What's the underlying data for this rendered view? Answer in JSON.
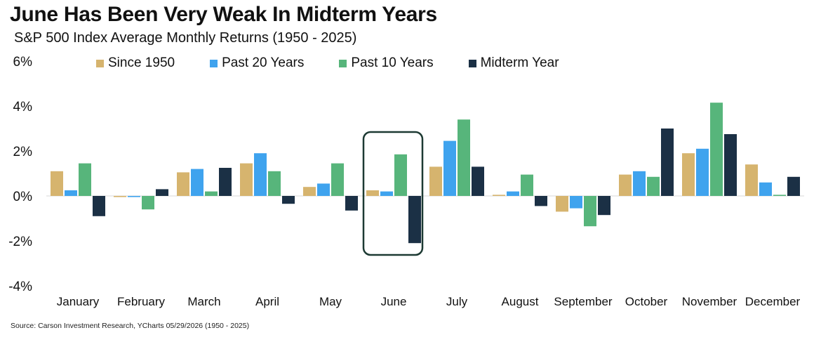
{
  "title": "June Has Been Very Weak In Midterm Years",
  "subtitle": "S&P 500 Index Average Monthly Returns (1950 - 2025)",
  "source": "Source: Carson Investment Research, YCharts 05/29/2026 (1950 - 2025)",
  "colors": {
    "since_1950": "#d6b46e",
    "past_20": "#3fa3ee",
    "past_10": "#57b57b",
    "midterm": "#1b3045",
    "highlight_box": "#1d3a33",
    "zero_line": "#d9d9d9"
  },
  "chart_data": {
    "type": "bar",
    "title": "June Has Been Very Weak In Midterm Years",
    "subtitle": "S&P 500 Index Average Monthly Returns (1950 - 2025)",
    "categories": [
      "January",
      "February",
      "March",
      "April",
      "May",
      "June",
      "July",
      "August",
      "September",
      "October",
      "November",
      "December"
    ],
    "series": [
      {
        "name": "Since 1950",
        "values": [
          1.1,
          -0.05,
          1.05,
          1.45,
          0.4,
          0.25,
          1.3,
          0.05,
          -0.7,
          0.95,
          1.9,
          1.4
        ]
      },
      {
        "name": "Past 20 Years",
        "values": [
          0.25,
          -0.05,
          1.2,
          1.9,
          0.55,
          0.2,
          2.45,
          0.2,
          -0.55,
          1.1,
          2.1,
          0.6
        ]
      },
      {
        "name": "Past 10 Years",
        "values": [
          1.45,
          -0.6,
          0.2,
          1.1,
          1.45,
          1.85,
          3.4,
          0.95,
          -1.35,
          0.85,
          4.15,
          0.05
        ]
      },
      {
        "name": "Midterm Year",
        "values": [
          -0.9,
          0.3,
          1.25,
          -0.35,
          -0.65,
          -2.1,
          1.3,
          -0.45,
          -0.85,
          3.0,
          2.75,
          0.85
        ]
      }
    ],
    "y_ticks": [
      "6%",
      "4%",
      "2%",
      "0%",
      "-2%",
      "-4%"
    ],
    "ylim": [
      -4,
      6
    ],
    "legend_position": "top",
    "highlighted_category": "June",
    "grid": false
  }
}
